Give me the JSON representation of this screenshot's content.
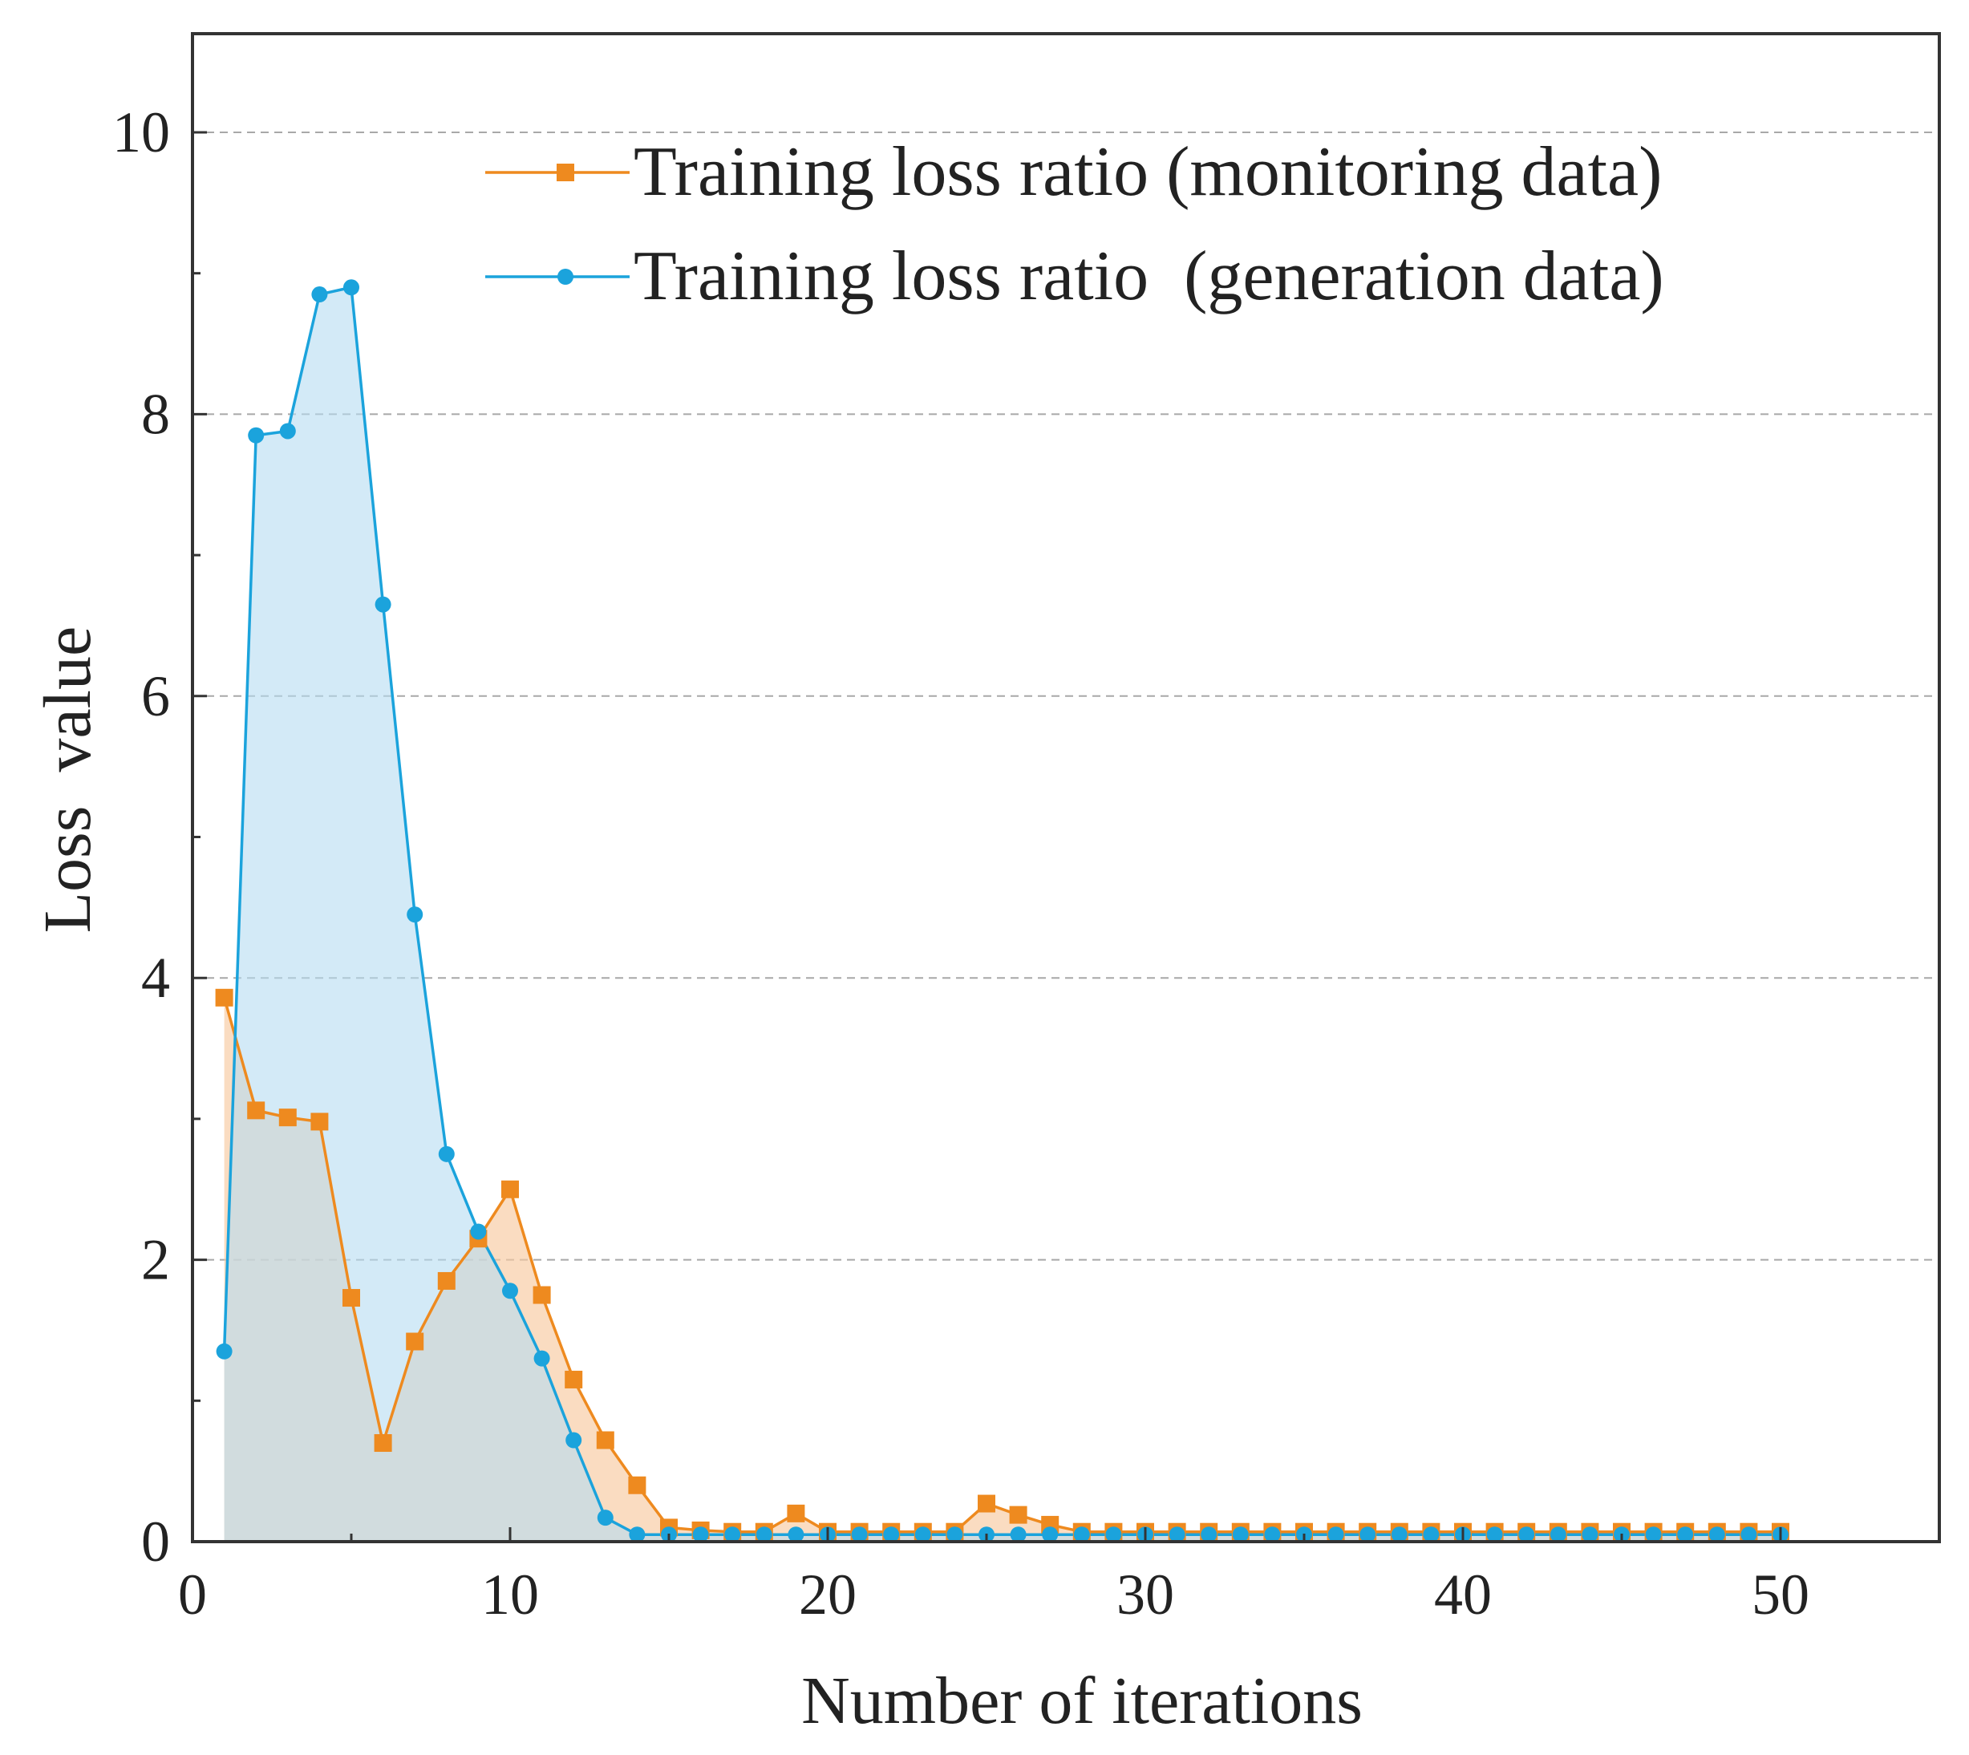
{
  "chart_data": {
    "type": "line",
    "title": "",
    "xlabel": "Number of iterations",
    "ylabel": "Loss  value",
    "xlim": [
      0,
      55
    ],
    "ylim": [
      0,
      10.7
    ],
    "xticks": [
      0,
      10,
      20,
      30,
      40,
      50
    ],
    "xtick_labels": [
      "0",
      "10",
      "20",
      "30",
      "40",
      "50"
    ],
    "yticks": [
      0,
      2,
      4,
      6,
      8,
      10
    ],
    "ytick_labels": [
      "0",
      "2",
      "4",
      "6",
      "8",
      "10"
    ],
    "grid": "horizontal dashed at major y ticks",
    "legend_position": "top-right",
    "x": [
      1,
      2,
      3,
      4,
      5,
      6,
      7,
      8,
      9,
      10,
      11,
      12,
      13,
      14,
      15,
      16,
      17,
      18,
      19,
      20,
      21,
      22,
      23,
      24,
      25,
      26,
      27,
      28,
      29,
      30,
      31,
      32,
      33,
      34,
      35,
      36,
      37,
      38,
      39,
      40,
      41,
      42,
      43,
      44,
      45,
      46,
      47,
      48,
      49,
      50
    ],
    "series": [
      {
        "name": "Training loss ratio (monitoring data)",
        "color": "#ee8a1f",
        "fill": "#f8c9a0",
        "marker": "square",
        "values": [
          3.86,
          3.06,
          3.01,
          2.98,
          1.73,
          0.7,
          1.42,
          1.85,
          2.15,
          2.5,
          1.75,
          1.15,
          0.72,
          0.4,
          0.1,
          0.08,
          0.07,
          0.07,
          0.2,
          0.07,
          0.07,
          0.07,
          0.07,
          0.07,
          0.27,
          0.19,
          0.12,
          0.07,
          0.07,
          0.07,
          0.07,
          0.07,
          0.07,
          0.07,
          0.07,
          0.07,
          0.07,
          0.07,
          0.07,
          0.07,
          0.07,
          0.07,
          0.07,
          0.07,
          0.07,
          0.07,
          0.07,
          0.07,
          0.07,
          0.07
        ]
      },
      {
        "name": "Training loss ratio  (generation data)",
        "color": "#1ba3dc",
        "fill": "#b5dcf2",
        "marker": "circle",
        "values": [
          1.35,
          7.85,
          7.88,
          8.85,
          8.9,
          6.65,
          4.45,
          2.75,
          2.2,
          1.78,
          1.3,
          0.72,
          0.17,
          0.05,
          0.05,
          0.05,
          0.05,
          0.05,
          0.05,
          0.05,
          0.05,
          0.05,
          0.05,
          0.05,
          0.05,
          0.05,
          0.05,
          0.05,
          0.05,
          0.05,
          0.05,
          0.05,
          0.05,
          0.05,
          0.05,
          0.05,
          0.05,
          0.05,
          0.05,
          0.05,
          0.05,
          0.05,
          0.05,
          0.05,
          0.05,
          0.05,
          0.05,
          0.05,
          0.05,
          0.05
        ]
      }
    ]
  }
}
